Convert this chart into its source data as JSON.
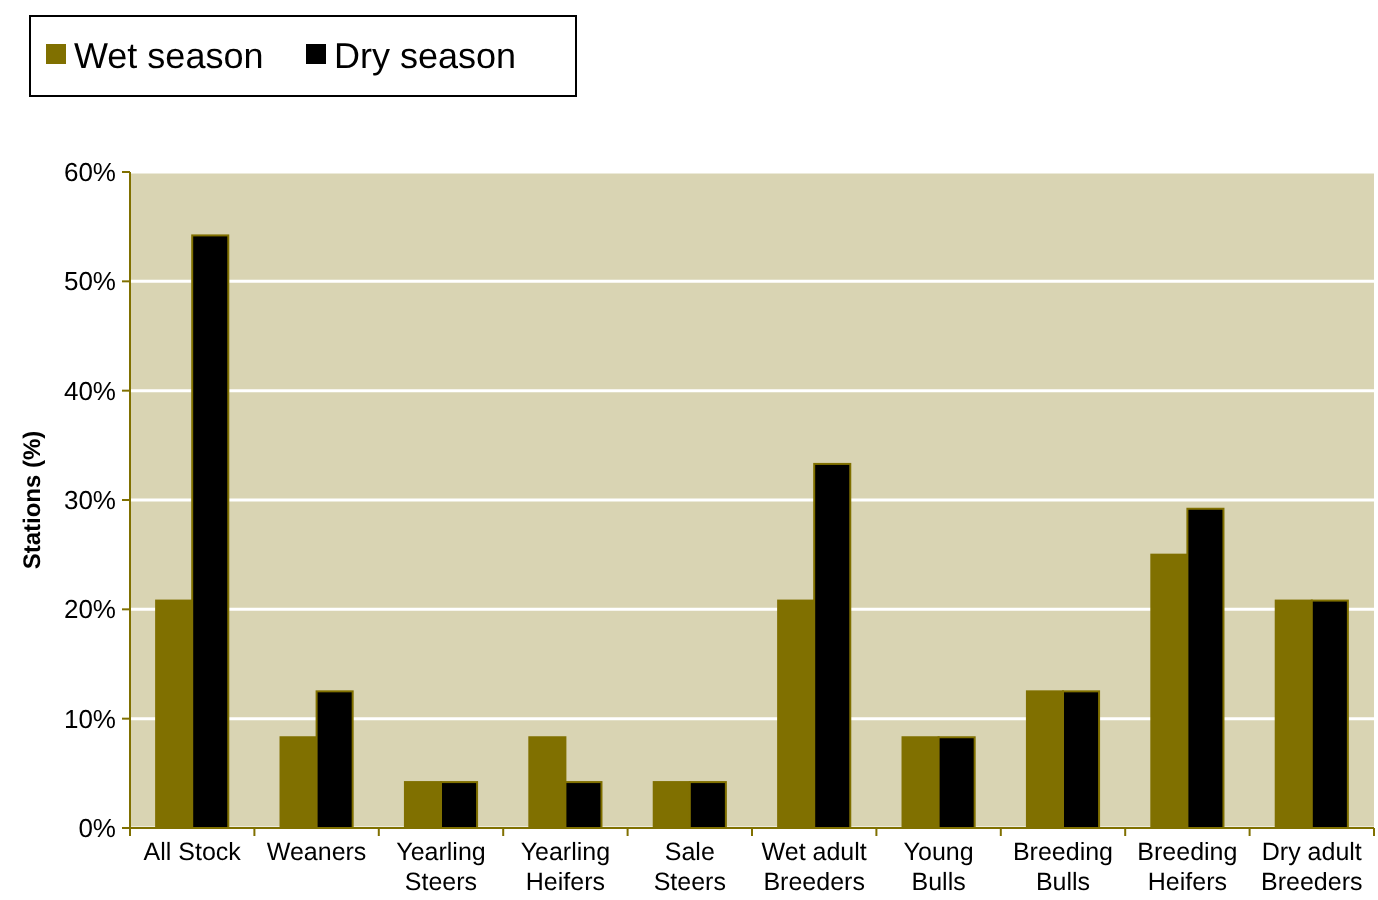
{
  "chart_data": {
    "type": "bar",
    "ylabel": "Stations (%)",
    "categories": [
      "All Stock",
      "Weaners",
      "Yearling\nSteers",
      "Yearling\nHeifers",
      "Sale\nSteers",
      "Wet adult\nBreeders",
      "Young\nBulls",
      "Breeding\nBulls",
      "Breeding\nHeifers",
      "Dry adult\nBreeders"
    ],
    "series": [
      {
        "name": "Wet season",
        "color": "#807000",
        "values": [
          20.8,
          8.3,
          4.2,
          8.3,
          4.2,
          20.8,
          8.3,
          12.5,
          25,
          20.8
        ]
      },
      {
        "name": "Dry season",
        "color": "#000000",
        "values": [
          54.2,
          12.5,
          4.2,
          4.2,
          4.2,
          33.3,
          8.3,
          12.5,
          29.2,
          20.8
        ]
      }
    ],
    "ylim": [
      0,
      60
    ],
    "yticks": [
      {
        "value": 0,
        "label": "0%"
      },
      {
        "value": 10,
        "label": "10%"
      },
      {
        "value": 20,
        "label": "20%"
      },
      {
        "value": 30,
        "label": "30%"
      },
      {
        "value": 40,
        "label": "40%"
      },
      {
        "value": 50,
        "label": "50%"
      },
      {
        "value": 60,
        "label": "60%"
      }
    ],
    "grid": "y",
    "legend": "top left"
  }
}
